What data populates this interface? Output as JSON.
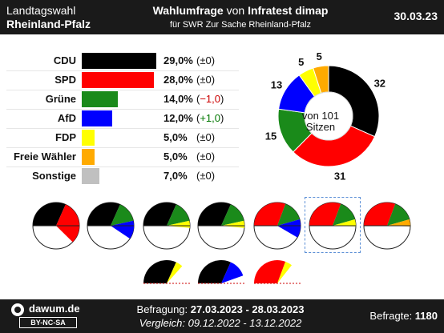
{
  "header": {
    "region_line1": "Landtagswahl",
    "region_line2": "Rheinland-Pfalz",
    "title_bold1": "Wahlumfrage",
    "title_mid": " von ",
    "title_bold2": "Infratest dimap",
    "subtitle": "für SWR Zur Sache Rheinland-Pfalz",
    "date": "30.03.23"
  },
  "chart_data": {
    "type": "bar",
    "categories": [
      "CDU",
      "SPD",
      "Grüne",
      "AfD",
      "FDP",
      "Freie Wähler",
      "Sonstige"
    ],
    "values": [
      29.0,
      28.0,
      14.0,
      12.0,
      5.0,
      5.0,
      7.0
    ],
    "value_labels": [
      "29,0%",
      "28,0%",
      "14,0%",
      "12,0%",
      "5,0%",
      "5,0%",
      "7,0%"
    ],
    "change_labels": [
      "±0",
      "±0",
      "−1,0",
      "+1,0",
      "±0",
      "±0",
      "±0"
    ],
    "change_sign": [
      "zero",
      "zero",
      "neg",
      "pos",
      "zero",
      "zero",
      "zero"
    ],
    "colors": [
      "#000000",
      "#ff0000",
      "#1a8a1a",
      "#0000ff",
      "#ffff00",
      "#ffaa00",
      "#c0c0c0"
    ],
    "xlim": [
      0,
      29
    ],
    "seats": {
      "center_line1": "von 101",
      "center_line2": "Sitzen",
      "parties": [
        "CDU",
        "SPD",
        "Grüne",
        "AfD",
        "FDP",
        "Freie Wähler"
      ],
      "values": [
        32,
        31,
        15,
        13,
        5,
        5
      ],
      "colors": [
        "#000000",
        "#ff0000",
        "#1a8a1a",
        "#0000ff",
        "#ffff00",
        "#ffaa00"
      ]
    },
    "coalitions": [
      {
        "parties": [
          "CDU",
          "SPD"
        ],
        "seats": [
          32,
          31
        ],
        "half": "full"
      },
      {
        "parties": [
          "CDU",
          "Grüne",
          "AfD"
        ],
        "seats": [
          32,
          15,
          13
        ],
        "half": "full"
      },
      {
        "parties": [
          "CDU",
          "Grüne",
          "FDP"
        ],
        "seats": [
          32,
          15,
          5
        ],
        "half": "full"
      },
      {
        "parties": [
          "CDU",
          "Grüne",
          "FDP"
        ],
        "seats": [
          32,
          15,
          5
        ],
        "half": "full"
      },
      {
        "parties": [
          "SPD",
          "Grüne",
          "AfD"
        ],
        "seats": [
          31,
          15,
          13
        ],
        "half": "full"
      },
      {
        "parties": [
          "SPD",
          "Grüne",
          "FDP"
        ],
        "seats": [
          31,
          15,
          5
        ],
        "half": "full",
        "selected": true
      },
      {
        "parties": [
          "SPD",
          "Grüne",
          "Freie Wähler"
        ],
        "seats": [
          31,
          15,
          5
        ],
        "half": "full"
      },
      {
        "parties": [
          "CDU",
          "FDP"
        ],
        "seats": [
          32,
          5
        ],
        "half": "top"
      },
      {
        "parties": [
          "CDU",
          "AfD"
        ],
        "seats": [
          32,
          13
        ],
        "half": "top"
      },
      {
        "parties": [
          "SPD",
          "FDP"
        ],
        "seats": [
          31,
          5
        ],
        "half": "top"
      }
    ]
  },
  "footer": {
    "site": "dawum.de",
    "license": "BY-NC-SA",
    "poll_label": "Befragung: ",
    "poll_range": "27.03.2023 - 28.03.2023",
    "compare": "Vergleich: 09.12.2022 - 13.12.2022",
    "respondents_label": "Befragte: ",
    "respondents_value": "1180"
  }
}
